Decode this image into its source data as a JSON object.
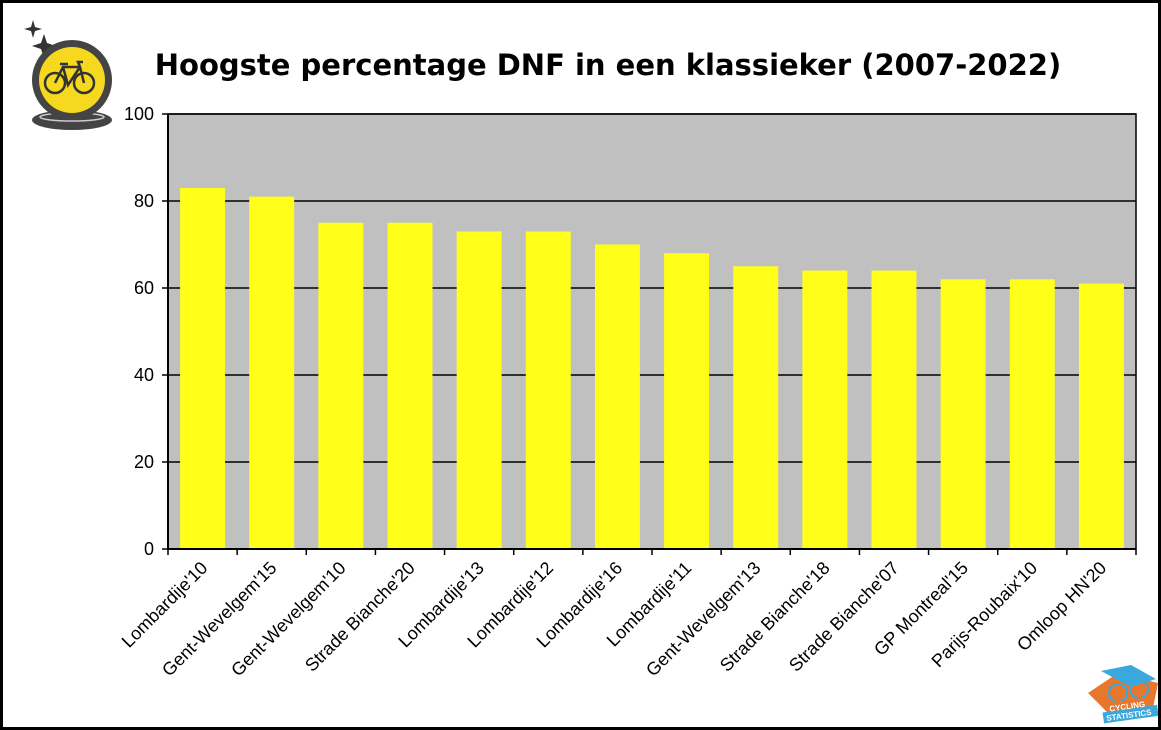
{
  "chart_data": {
    "type": "bar",
    "title": "Hoogste percentage DNF in een klassieker (2007-2022)",
    "xlabel": "",
    "ylabel": "",
    "ylim": [
      0,
      100
    ],
    "yticks": [
      "0",
      "20",
      "40",
      "60",
      "80",
      "100"
    ],
    "grid": true,
    "categories": [
      "Lombardije'10",
      "Gent-Wevelgem'15",
      "Gent-Wevelgem'10",
      "Strade Bianche'20",
      "Lombardije'13",
      "Lombardije'12",
      "Lombardije'16",
      "Lombardije'11",
      "Gent-Wevelgem'13",
      "Strade Bianche'18",
      "Strade Bianche'07",
      "GP Montreal'15",
      "Parijs-Roubaix'10",
      "Omloop HN'20"
    ],
    "values": [
      83,
      81,
      75,
      75,
      73,
      73,
      70,
      68,
      65,
      64,
      64,
      62,
      62,
      61
    ],
    "colors": {
      "bar": "#ffff1a",
      "plot_bg": "#c0c0c0",
      "grid": "#000000"
    }
  },
  "logos": {
    "bottom_right_text": [
      "CYCLING",
      "STATISTICS"
    ]
  }
}
